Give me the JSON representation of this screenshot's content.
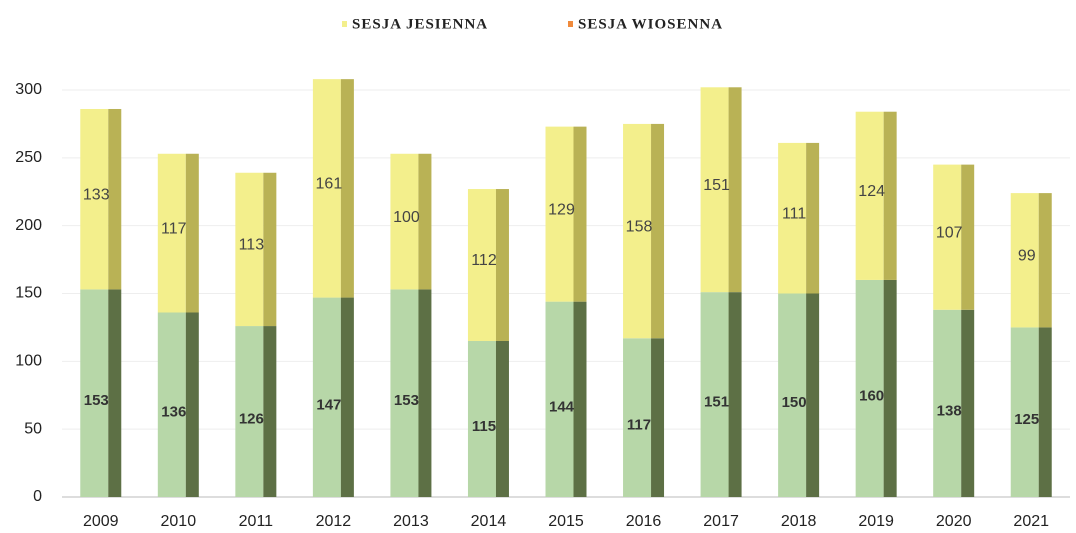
{
  "chart_data": {
    "type": "stacked_bar",
    "categories": [
      "2009",
      "2010",
      "2011",
      "2012",
      "2013",
      "2014",
      "2015",
      "2016",
      "2017",
      "2018",
      "2019",
      "2020",
      "2021"
    ],
    "series": [
      {
        "name": "SESJA JESIENNA",
        "color": "#f3ef8c",
        "side_color": "#b9b255",
        "legend_color": "#f3ef8c",
        "values": [
          133,
          117,
          113,
          161,
          100,
          112,
          129,
          158,
          151,
          111,
          124,
          107,
          99
        ]
      },
      {
        "name": "SESJA WIOSENNA",
        "color": "#b7d7a8",
        "side_color": "#5d7045",
        "legend_color": "#f08a3c",
        "values": [
          153,
          136,
          126,
          147,
          153,
          115,
          144,
          117,
          151,
          150,
          160,
          138,
          125
        ]
      }
    ],
    "ylim": [
      0,
      300
    ],
    "yticks": [
      0,
      50,
      100,
      150,
      200,
      250,
      300
    ],
    "grid": true
  }
}
